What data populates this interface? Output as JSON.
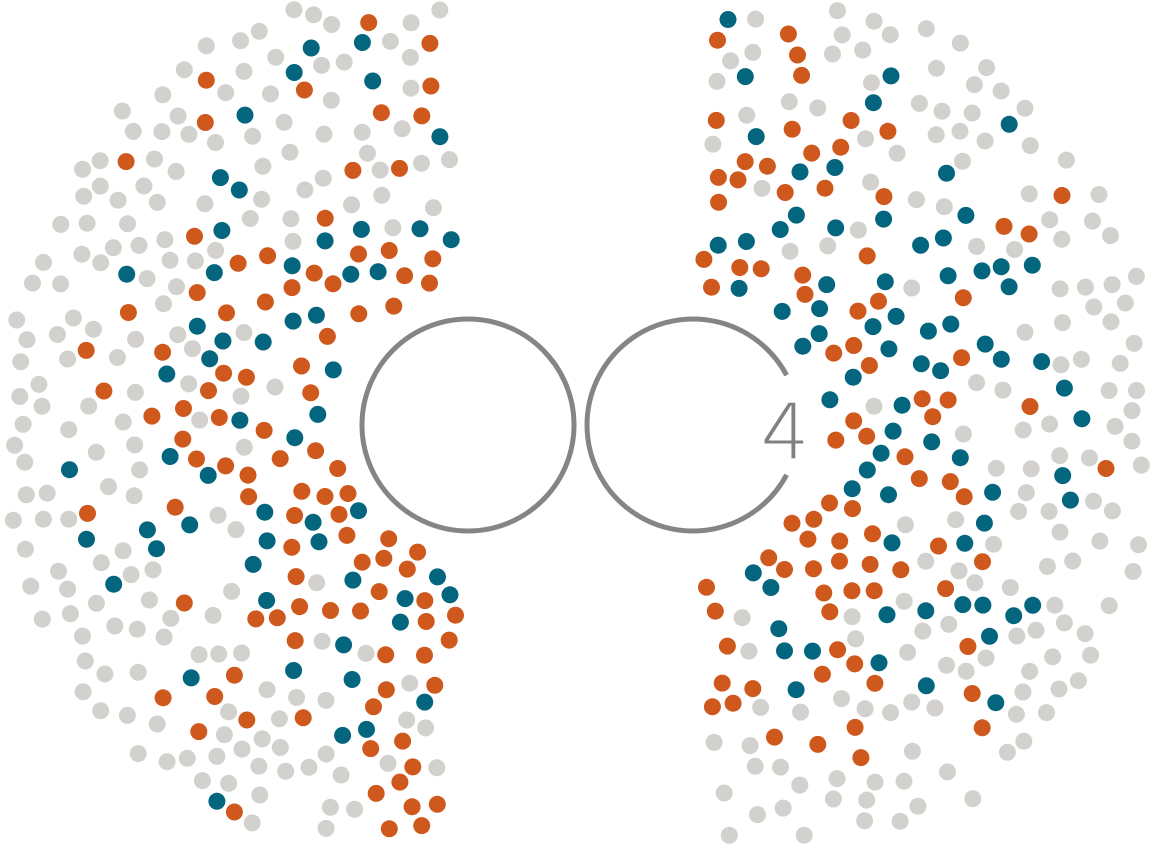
{
  "logo": {
    "numeral": "4",
    "ring_color": "#858585",
    "numeral_color": "#808080"
  },
  "dot_colors": {
    "neutral": "#d3d1cd",
    "accent_orange": "#cf581c",
    "accent_teal": "#04657f"
  }
}
